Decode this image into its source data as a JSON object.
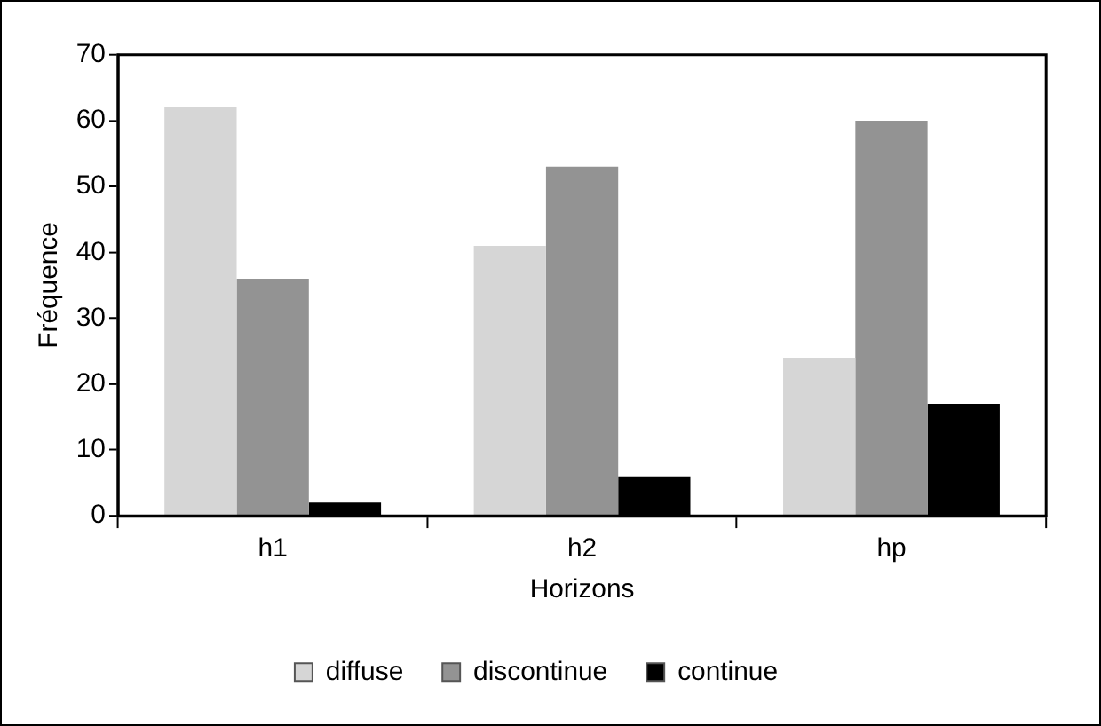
{
  "chart_data": {
    "type": "bar",
    "xlabel": "Horizons",
    "ylabel": "Fréquence",
    "categories": [
      "h1",
      "h2",
      "hp"
    ],
    "series": [
      {
        "name": "diffuse",
        "color": "#d6d6d6",
        "values": [
          62,
          41,
          24
        ]
      },
      {
        "name": "discontinue",
        "color": "#939393",
        "values": [
          36,
          53,
          60
        ]
      },
      {
        "name": "continue",
        "color": "#000000",
        "values": [
          2,
          6,
          17
        ]
      }
    ],
    "ylim": [
      0,
      70
    ],
    "yticks": [
      0,
      10,
      20,
      30,
      40,
      50,
      60,
      70
    ],
    "grid": false,
    "legend": "bottom"
  }
}
